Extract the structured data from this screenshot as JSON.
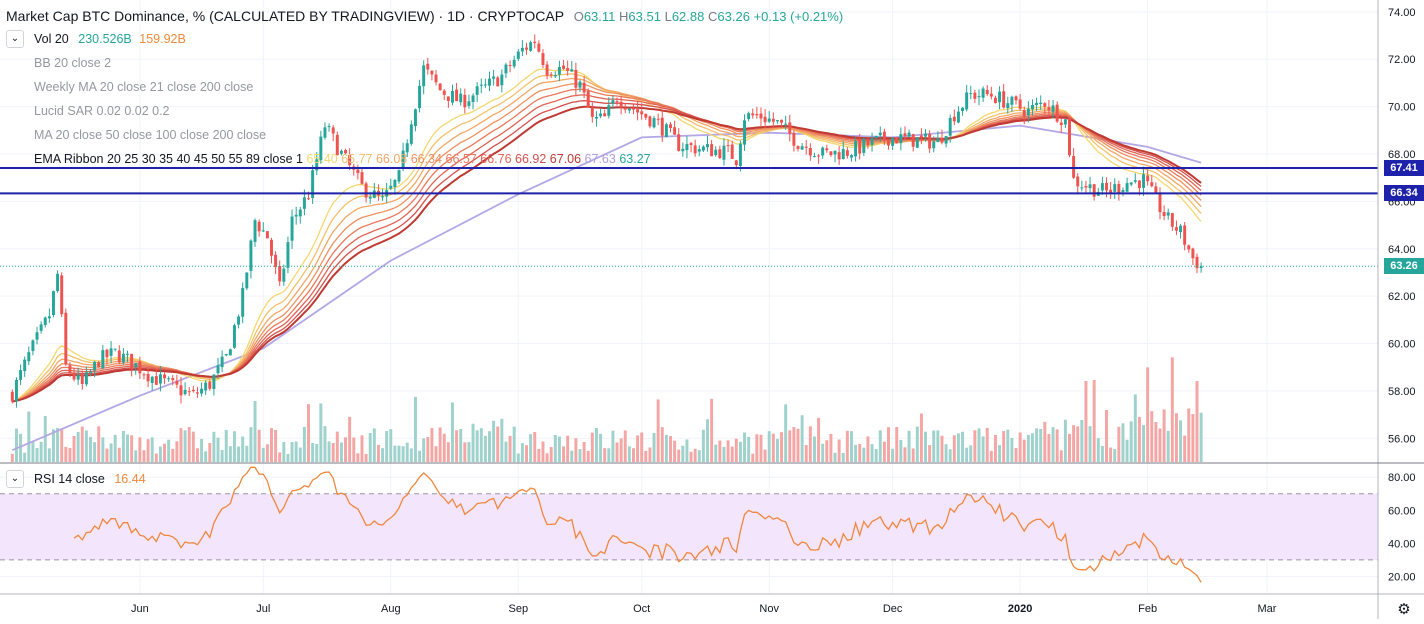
{
  "header": {
    "title": "Market Cap BTC Dominance, % (CALCULATED BY TRADINGVIEW) · 1D · CRYPTOCAP",
    "ohlc": [
      {
        "label": "O",
        "value": "63.11"
      },
      {
        "label": "H",
        "value": "63.51"
      },
      {
        "label": "L",
        "value": "62.88"
      },
      {
        "label": "C",
        "value": "63.26"
      }
    ],
    "change": "+0.13 (+0.21%)"
  },
  "indicators": [
    {
      "name": "Vol 20",
      "values": [
        "230.526B",
        "159.92B"
      ],
      "value_colors": [
        "#26a69a",
        "#ef8a3a"
      ]
    },
    {
      "name": "BB 20 close 2",
      "values": []
    },
    {
      "name": "Weekly MA 20 close 21 close 200 close",
      "values": []
    },
    {
      "name": "Lucid SAR 0.02 0.02 0.2",
      "values": []
    },
    {
      "name": "MA 20 close 50 close 100 close 200 close",
      "values": []
    },
    {
      "name": "EMA Ribbon 20 25 30 35 40 45 50 55 89 close 1",
      "values": [
        "65.40",
        "65.77",
        "66.08",
        "66.34",
        "66.57",
        "66.76",
        "66.92",
        "67.06",
        "67.63",
        "63.27"
      ],
      "value_colors": [
        "#f5d76e",
        "#f4c06a",
        "#f2a765",
        "#ef9060",
        "#e9795a",
        "#e06454",
        "#d5504d",
        "#bf3a32",
        "#b39ddb",
        "#26a69a"
      ]
    }
  ],
  "rsi_legend": {
    "name": "RSI 14 close",
    "value": "16.44"
  },
  "price_axis": {
    "ticks": [
      "74.00",
      "72.00",
      "70.00",
      "68.00",
      "66.00",
      "64.00",
      "62.00",
      "60.00",
      "58.00",
      "56.00"
    ]
  },
  "rsi_axis": {
    "ticks": [
      "80.00",
      "60.00",
      "40.00",
      "20.00"
    ]
  },
  "time_axis": {
    "ticks": [
      "Jun",
      "Jul",
      "Aug",
      "Sep",
      "Oct",
      "Nov",
      "Dec",
      "2020",
      "Feb",
      "Mar"
    ]
  },
  "price_labels": [
    {
      "value": "67.41",
      "color": "#1e22aa"
    },
    {
      "value": "66.34",
      "color": "#1e22aa"
    },
    {
      "value": "63.26",
      "color": "#26a69a"
    }
  ],
  "colors": {
    "up": "#26a69a",
    "down": "#ef5350",
    "vol_up": "#9fd2cc",
    "vol_down": "#f4a6a4",
    "rsi": "#f0883e",
    "rsi_band": "#f3e5fb",
    "ma200": "#b4a7e6",
    "hline": "#1e22aa"
  },
  "chart_data": {
    "type": "candlestick",
    "title": "Market Cap BTC Dominance, % (CALCULATED BY TRADINGVIEW)",
    "interval": "1D",
    "ylim": [
      55,
      74.5
    ],
    "rsi_ylim": [
      10,
      88
    ],
    "rsi_bands": [
      30,
      70
    ],
    "horizontal_lines": [
      67.41,
      66.34
    ],
    "last_close": 63.26,
    "close_anchors": [
      {
        "date": "2019-05-01",
        "close": 57.9
      },
      {
        "date": "2019-05-05",
        "close": 59.5
      },
      {
        "date": "2019-05-10",
        "close": 61.2
      },
      {
        "date": "2019-05-12",
        "close": 62.9
      },
      {
        "date": "2019-05-14",
        "close": 59.0
      },
      {
        "date": "2019-05-18",
        "close": 58.2
      },
      {
        "date": "2019-05-22",
        "close": 59.3
      },
      {
        "date": "2019-05-26",
        "close": 59.6
      },
      {
        "date": "2019-05-30",
        "close": 59.2
      },
      {
        "date": "2019-06-04",
        "close": 58.6
      },
      {
        "date": "2019-06-10",
        "close": 58.1
      },
      {
        "date": "2019-06-14",
        "close": 57.8
      },
      {
        "date": "2019-06-18",
        "close": 58.3
      },
      {
        "date": "2019-06-22",
        "close": 59.4
      },
      {
        "date": "2019-06-26",
        "close": 62.0
      },
      {
        "date": "2019-06-29",
        "close": 65.2
      },
      {
        "date": "2019-07-02",
        "close": 64.5
      },
      {
        "date": "2019-07-05",
        "close": 62.3
      },
      {
        "date": "2019-07-08",
        "close": 65.2
      },
      {
        "date": "2019-07-12",
        "close": 66.3
      },
      {
        "date": "2019-07-16",
        "close": 69.2
      },
      {
        "date": "2019-07-20",
        "close": 68.0
      },
      {
        "date": "2019-07-25",
        "close": 66.6
      },
      {
        "date": "2019-07-30",
        "close": 66.0
      },
      {
        "date": "2019-08-03",
        "close": 67.0
      },
      {
        "date": "2019-08-06",
        "close": 69.5
      },
      {
        "date": "2019-08-09",
        "close": 71.6
      },
      {
        "date": "2019-08-13",
        "close": 70.7
      },
      {
        "date": "2019-08-18",
        "close": 70.2
      },
      {
        "date": "2019-08-24",
        "close": 70.8
      },
      {
        "date": "2019-08-28",
        "close": 71.3
      },
      {
        "date": "2019-09-02",
        "close": 72.4
      },
      {
        "date": "2019-09-05",
        "close": 72.8
      },
      {
        "date": "2019-09-08",
        "close": 71.6
      },
      {
        "date": "2019-09-12",
        "close": 71.6
      },
      {
        "date": "2019-09-16",
        "close": 70.9
      },
      {
        "date": "2019-09-19",
        "close": 69.4
      },
      {
        "date": "2019-09-22",
        "close": 69.5
      },
      {
        "date": "2019-09-25",
        "close": 70.4
      },
      {
        "date": "2019-09-30",
        "close": 69.8
      },
      {
        "date": "2019-10-05",
        "close": 69.3
      },
      {
        "date": "2019-10-10",
        "close": 68.4
      },
      {
        "date": "2019-10-16",
        "close": 68.2
      },
      {
        "date": "2019-10-22",
        "close": 68.1
      },
      {
        "date": "2019-10-24",
        "close": 67.8
      },
      {
        "date": "2019-10-26",
        "close": 69.6
      },
      {
        "date": "2019-10-30",
        "close": 69.6
      },
      {
        "date": "2019-11-03",
        "close": 69.3
      },
      {
        "date": "2019-11-08",
        "close": 68.5
      },
      {
        "date": "2019-11-14",
        "close": 68.0
      },
      {
        "date": "2019-11-20",
        "close": 68.1
      },
      {
        "date": "2019-11-25",
        "close": 68.4
      },
      {
        "date": "2019-11-30",
        "close": 68.7
      },
      {
        "date": "2019-12-06",
        "close": 68.6
      },
      {
        "date": "2019-12-12",
        "close": 68.5
      },
      {
        "date": "2019-12-16",
        "close": 69.7
      },
      {
        "date": "2019-12-20",
        "close": 70.5
      },
      {
        "date": "2019-12-25",
        "close": 70.5
      },
      {
        "date": "2019-12-30",
        "close": 70.1
      },
      {
        "date": "2020-01-03",
        "close": 69.8
      },
      {
        "date": "2020-01-07",
        "close": 70.2
      },
      {
        "date": "2020-01-12",
        "close": 69.4
      },
      {
        "date": "2020-01-14",
        "close": 66.9
      },
      {
        "date": "2020-01-18",
        "close": 66.6
      },
      {
        "date": "2020-01-22",
        "close": 66.4
      },
      {
        "date": "2020-01-27",
        "close": 66.8
      },
      {
        "date": "2020-01-31",
        "close": 66.9
      },
      {
        "date": "2020-02-03",
        "close": 66.0
      },
      {
        "date": "2020-02-06",
        "close": 65.2
      },
      {
        "date": "2020-02-09",
        "close": 64.7
      },
      {
        "date": "2020-02-12",
        "close": 63.6
      },
      {
        "date": "2020-02-14",
        "close": 63.26
      }
    ],
    "ma200_anchors": [
      {
        "date": "2019-05-01",
        "value": 55.5
      },
      {
        "date": "2019-06-01",
        "value": 57.8
      },
      {
        "date": "2019-07-01",
        "value": 59.8
      },
      {
        "date": "2019-08-01",
        "value": 63.5
      },
      {
        "date": "2019-09-01",
        "value": 66.3
      },
      {
        "date": "2019-10-01",
        "value": 68.7
      },
      {
        "date": "2019-11-01",
        "value": 68.9
      },
      {
        "date": "2019-12-01",
        "value": 68.7
      },
      {
        "date": "2020-01-01",
        "value": 69.2
      },
      {
        "date": "2020-02-01",
        "value": 68.3
      },
      {
        "date": "2020-02-14",
        "value": 67.63
      }
    ],
    "volume_last": "230.526B",
    "volume_ma": "159.92B",
    "rsi_last": 16.44
  }
}
